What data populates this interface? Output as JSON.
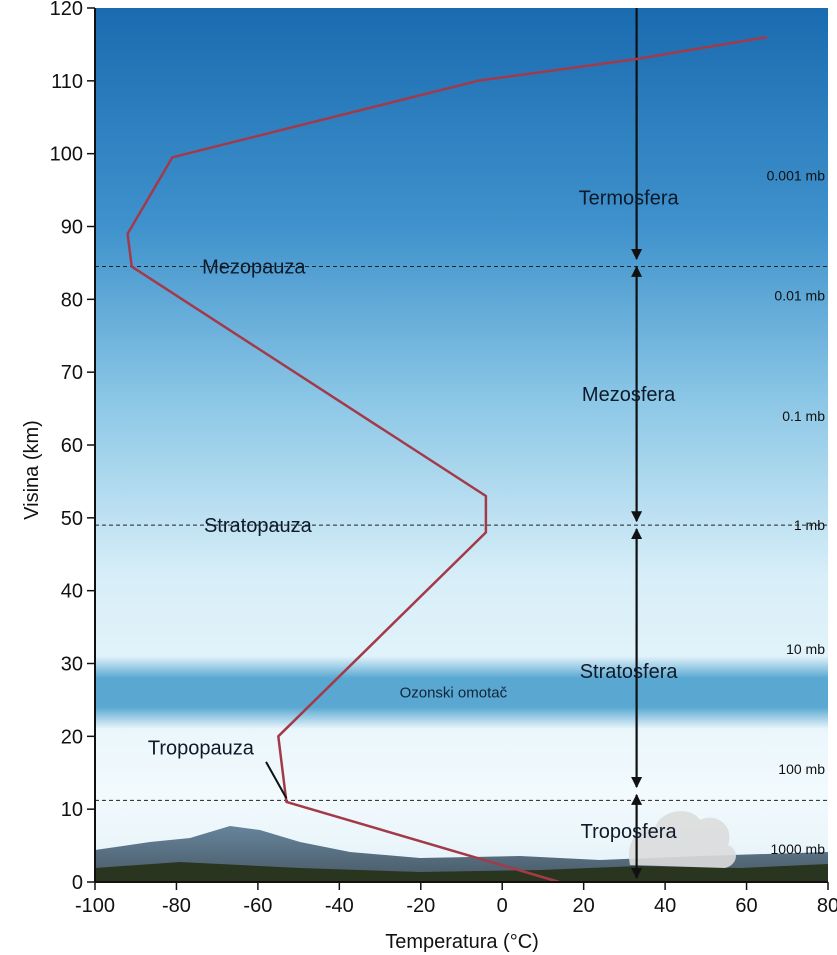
{
  "chart_data": {
    "type": "line",
    "xlabel": "Temperatura (°C)",
    "ylabel": "Visina (km)",
    "xlim": [
      -100,
      80
    ],
    "ylim": [
      0,
      120
    ],
    "x_ticks": [
      -100,
      -80,
      -60,
      -40,
      -20,
      0,
      20,
      40,
      60,
      80
    ],
    "y_ticks": [
      0,
      10,
      20,
      30,
      40,
      50,
      60,
      70,
      80,
      90,
      100,
      110,
      120
    ],
    "series": [
      {
        "points": [
          {
            "x": 14,
            "y": 0
          },
          {
            "x": -53,
            "y": 11
          },
          {
            "x": -55,
            "y": 20
          },
          {
            "x": -4,
            "y": 48
          },
          {
            "x": -4,
            "y": 53
          },
          {
            "x": -91,
            "y": 84.5
          },
          {
            "x": -92,
            "y": 89
          },
          {
            "x": -81,
            "y": 99.5
          },
          {
            "x": -6,
            "y": 110
          },
          {
            "x": 33,
            "y": 113
          },
          {
            "x": 65,
            "y": 116
          }
        ]
      }
    ],
    "pauses": [
      {
        "label": "Mezopauza",
        "y": 84.5,
        "label_x": -61
      },
      {
        "label": "Stratopauza",
        "y": 49,
        "label_x": -60
      },
      {
        "label": "Tropopauza",
        "y": 11.2,
        "label_x": -74,
        "label_y": 18.5
      }
    ],
    "layers": [
      {
        "label": "Termosfera",
        "y": 94
      },
      {
        "label": "Mezosfera",
        "y": 67
      },
      {
        "label": "Stratosfera",
        "y": 29
      },
      {
        "label": "Troposfera",
        "y": 7
      }
    ],
    "pressures": [
      {
        "label": "0.001 mb",
        "y": 97
      },
      {
        "label": "0.01 mb",
        "y": 80.5
      },
      {
        "label": "0.1 mb",
        "y": 64
      },
      {
        "label": "1 mb",
        "y": 49
      },
      {
        "label": "10 mb",
        "y": 32
      },
      {
        "label": "100 mb",
        "y": 15.5
      },
      {
        "label": "1000 mb",
        "y": 4.5
      }
    ],
    "ozone_layer": {
      "label": "Ozonski omotač",
      "y_range": [
        21,
        31
      ]
    },
    "arrow_x": 33,
    "arrow_segments": [
      [
        120,
        85
      ],
      [
        85,
        49
      ],
      [
        49,
        12.5
      ],
      [
        12.5,
        0
      ]
    ],
    "colors": {
      "profile": "#a33a4a",
      "sky_top": "#1a6bb0",
      "sky_mid": "#8cc7e6",
      "sky_low": "#eef8fc",
      "ozone": "#2b8fc4",
      "arrow": "#111111"
    }
  }
}
